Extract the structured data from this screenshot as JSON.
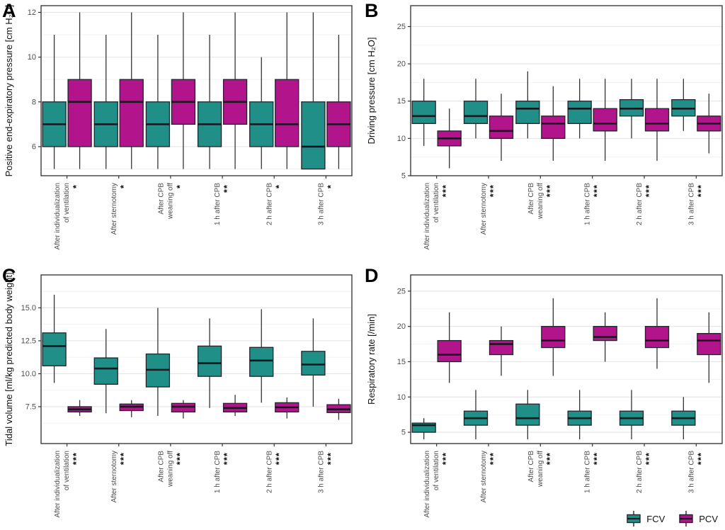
{
  "figure": {
    "colors": {
      "fcv": "#1F8F88",
      "pcv": "#B2148C",
      "box_stroke": "#22242B",
      "median": "#16161D",
      "grid_major": "#E4E4E4",
      "grid_minor": "#F1F1F1",
      "panel_border": "#3C3C3C",
      "axis_text": "#4D4D4D"
    },
    "legend": {
      "items": [
        {
          "label": "FCV",
          "color_key": "fcv"
        },
        {
          "label": "PCV",
          "color_key": "pcv"
        }
      ]
    }
  },
  "chart_data": [
    {
      "type": "boxplot",
      "panel": "A",
      "ylabel": "Positive end-expiratory pressure [cm H₂O]",
      "ylim": [
        4.7,
        12.3
      ],
      "yticks": [
        6,
        8,
        10,
        12
      ],
      "ytick_labels": [
        "6",
        "8",
        "10",
        "12"
      ],
      "grid": true,
      "legend_position": "bottom-right",
      "categories": [
        {
          "lines": [
            "After individualization",
            "of ventilation"
          ],
          "sig": "*"
        },
        {
          "lines": [
            "After sternotomy"
          ],
          "sig": "*"
        },
        {
          "lines": [
            "After CPB",
            "weaning off"
          ],
          "sig": "*"
        },
        {
          "lines": [
            "1 h after CPB"
          ],
          "sig": "**"
        },
        {
          "lines": [
            "2 h after CPB"
          ],
          "sig": "*"
        },
        {
          "lines": [
            "3 h after CPB"
          ],
          "sig": "*"
        }
      ],
      "series": [
        {
          "name": "FCV",
          "boxes": [
            {
              "lo": 5,
              "q1": 6,
              "med": 7,
              "q3": 8,
              "hi": 11
            },
            {
              "lo": 5,
              "q1": 6,
              "med": 7,
              "q3": 8,
              "hi": 11
            },
            {
              "lo": 5,
              "q1": 6,
              "med": 7,
              "q3": 8,
              "hi": 11
            },
            {
              "lo": 5,
              "q1": 6,
              "med": 7,
              "q3": 8,
              "hi": 11
            },
            {
              "lo": 5,
              "q1": 6,
              "med": 7,
              "q3": 8,
              "hi": 10
            },
            {
              "lo": 5,
              "q1": 5,
              "med": 6,
              "q3": 8,
              "hi": 12
            }
          ]
        },
        {
          "name": "PCV",
          "boxes": [
            {
              "lo": 5,
              "q1": 6,
              "med": 8,
              "q3": 9,
              "hi": 12
            },
            {
              "lo": 5,
              "q1": 6,
              "med": 8,
              "q3": 9,
              "hi": 12
            },
            {
              "lo": 5,
              "q1": 7,
              "med": 8,
              "q3": 9,
              "hi": 12
            },
            {
              "lo": 5,
              "q1": 7,
              "med": 8,
              "q3": 9,
              "hi": 12
            },
            {
              "lo": 5,
              "q1": 6,
              "med": 7,
              "q3": 9,
              "hi": 12
            },
            {
              "lo": 5,
              "q1": 6,
              "med": 7,
              "q3": 8,
              "hi": 11
            }
          ]
        }
      ]
    },
    {
      "type": "boxplot",
      "panel": "B",
      "ylabel": "Driving pressure [cm H₂O]",
      "ylim": [
        5,
        27.8
      ],
      "yticks": [
        5,
        10,
        15,
        20,
        25
      ],
      "ytick_labels": [
        "5",
        "10",
        "15",
        "20",
        "25"
      ],
      "grid": true,
      "categories": [
        {
          "lines": [
            "After individualization",
            "of ventilation"
          ],
          "sig": "***"
        },
        {
          "lines": [
            "After sternotomy"
          ],
          "sig": "***"
        },
        {
          "lines": [
            "After CPB",
            "weaning off"
          ],
          "sig": "***"
        },
        {
          "lines": [
            "1 h after CPB"
          ],
          "sig": "***"
        },
        {
          "lines": [
            "2 h after CPB"
          ],
          "sig": "***"
        },
        {
          "lines": [
            "3 h after CPB"
          ],
          "sig": "***"
        }
      ],
      "series": [
        {
          "name": "FCV",
          "boxes": [
            {
              "lo": 9,
              "q1": 12,
              "med": 13,
              "q3": 15,
              "hi": 18
            },
            {
              "lo": 10,
              "q1": 12,
              "med": 13,
              "q3": 15,
              "hi": 18
            },
            {
              "lo": 10,
              "q1": 12,
              "med": 14,
              "q3": 15,
              "hi": 19
            },
            {
              "lo": 10,
              "q1": 12,
              "med": 14,
              "q3": 15,
              "hi": 18
            },
            {
              "lo": 10,
              "q1": 13,
              "med": 14,
              "q3": 15.2,
              "hi": 18
            },
            {
              "lo": 11,
              "q1": 13,
              "med": 14,
              "q3": 15.2,
              "hi": 18
            }
          ]
        },
        {
          "name": "PCV",
          "boxes": [
            {
              "lo": 6,
              "q1": 9,
              "med": 10,
              "q3": 11,
              "hi": 14
            },
            {
              "lo": 7,
              "q1": 10,
              "med": 11,
              "q3": 13,
              "hi": 16
            },
            {
              "lo": 7,
              "q1": 10,
              "med": 12,
              "q3": 13,
              "hi": 17
            },
            {
              "lo": 7,
              "q1": 11,
              "med": 12,
              "q3": 14,
              "hi": 18
            },
            {
              "lo": 7,
              "q1": 11,
              "med": 12,
              "q3": 14,
              "hi": 18
            },
            {
              "lo": 8,
              "q1": 11,
              "med": 12,
              "q3": 13,
              "hi": 16
            }
          ]
        }
      ]
    },
    {
      "type": "boxplot",
      "panel": "C",
      "ylabel": "Tidal volume [ml/kg predicted body weight]",
      "ylim": [
        4.7,
        17.5
      ],
      "yticks": [
        7.5,
        10,
        12.5,
        15
      ],
      "ytick_labels": [
        "7.5",
        "10.0",
        "12.5",
        "15.0"
      ],
      "grid": true,
      "categories": [
        {
          "lines": [
            "After individualization",
            "of ventilation"
          ],
          "sig": "***"
        },
        {
          "lines": [
            "After sternotomy"
          ],
          "sig": "***"
        },
        {
          "lines": [
            "After CPB",
            "weaning off"
          ],
          "sig": "***"
        },
        {
          "lines": [
            "1 h after CPB"
          ],
          "sig": "***"
        },
        {
          "lines": [
            "2 h after CPB"
          ],
          "sig": "***"
        },
        {
          "lines": [
            "3 h after CPB"
          ],
          "sig": "***"
        }
      ],
      "series": [
        {
          "name": "FCV",
          "boxes": [
            {
              "lo": 9.3,
              "q1": 10.6,
              "med": 12.1,
              "q3": 13.1,
              "hi": 16.0
            },
            {
              "lo": 7.0,
              "q1": 9.2,
              "med": 10.4,
              "q3": 11.2,
              "hi": 13.4
            },
            {
              "lo": 6.8,
              "q1": 9.0,
              "med": 10.3,
              "q3": 11.5,
              "hi": 15.0
            },
            {
              "lo": 7.4,
              "q1": 9.8,
              "med": 10.8,
              "q3": 12.1,
              "hi": 14.2
            },
            {
              "lo": 7.8,
              "q1": 9.8,
              "med": 11.0,
              "q3": 12.0,
              "hi": 14.9
            },
            {
              "lo": 7.5,
              "q1": 9.9,
              "med": 10.7,
              "q3": 11.7,
              "hi": 14.2
            }
          ]
        },
        {
          "name": "PCV",
          "boxes": [
            {
              "lo": 6.8,
              "q1": 7.1,
              "med": 7.3,
              "q3": 7.5,
              "hi": 8.0
            },
            {
              "lo": 6.7,
              "q1": 7.2,
              "med": 7.5,
              "q3": 7.7,
              "hi": 8.0
            },
            {
              "lo": 6.6,
              "q1": 7.1,
              "med": 7.5,
              "q3": 7.75,
              "hi": 8.0
            },
            {
              "lo": 6.8,
              "q1": 7.1,
              "med": 7.4,
              "q3": 7.75,
              "hi": 8.4
            },
            {
              "lo": 6.6,
              "q1": 7.1,
              "med": 7.45,
              "q3": 7.8,
              "hi": 8.2
            },
            {
              "lo": 6.5,
              "q1": 7.05,
              "med": 7.3,
              "q3": 7.65,
              "hi": 8.1
            }
          ]
        }
      ]
    },
    {
      "type": "boxplot",
      "panel": "D",
      "ylabel": "Respiratory rate [/min]",
      "ylim": [
        3.4,
        27.3
      ],
      "yticks": [
        5,
        10,
        15,
        20,
        25
      ],
      "ytick_labels": [
        "5",
        "10",
        "15",
        "20",
        "25"
      ],
      "grid": true,
      "categories": [
        {
          "lines": [
            "After individualization",
            "of ventilation"
          ],
          "sig": "***"
        },
        {
          "lines": [
            "After sternotomy"
          ],
          "sig": "***"
        },
        {
          "lines": [
            "After CPB",
            "weaning off"
          ],
          "sig": "***"
        },
        {
          "lines": [
            "1 h after CPB"
          ],
          "sig": "***"
        },
        {
          "lines": [
            "2 h after CPB"
          ],
          "sig": "***"
        },
        {
          "lines": [
            "3 h after CPB"
          ],
          "sig": "***"
        }
      ],
      "series": [
        {
          "name": "FCV",
          "boxes": [
            {
              "lo": 4,
              "q1": 5,
              "med": 6,
              "q3": 6.3,
              "hi": 7
            },
            {
              "lo": 4,
              "q1": 6,
              "med": 7,
              "q3": 8,
              "hi": 11
            },
            {
              "lo": 4,
              "q1": 6,
              "med": 7,
              "q3": 9,
              "hi": 11
            },
            {
              "lo": 4,
              "q1": 6,
              "med": 7,
              "q3": 8,
              "hi": 11
            },
            {
              "lo": 4,
              "q1": 6,
              "med": 7,
              "q3": 8,
              "hi": 11
            },
            {
              "lo": 4,
              "q1": 6,
              "med": 7,
              "q3": 8,
              "hi": 10
            }
          ]
        },
        {
          "name": "PCV",
          "boxes": [
            {
              "lo": 12,
              "q1": 15,
              "med": 16,
              "q3": 18,
              "hi": 22
            },
            {
              "lo": 13,
              "q1": 16,
              "med": 17.5,
              "q3": 18,
              "hi": 20
            },
            {
              "lo": 13,
              "q1": 17,
              "med": 18,
              "q3": 20,
              "hi": 24
            },
            {
              "lo": 15,
              "q1": 18,
              "med": 18.5,
              "q3": 20,
              "hi": 22
            },
            {
              "lo": 14,
              "q1": 17,
              "med": 18,
              "q3": 20,
              "hi": 24
            },
            {
              "lo": 12,
              "q1": 16,
              "med": 18,
              "q3": 19,
              "hi": 22
            }
          ]
        }
      ]
    }
  ]
}
